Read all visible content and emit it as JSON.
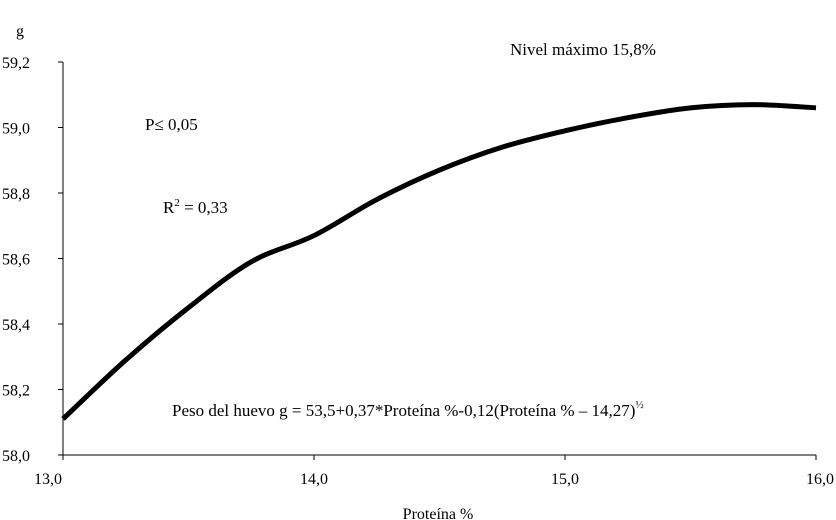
{
  "chart_data": {
    "type": "line",
    "ylabel": "g",
    "xlabel": "Proteína %",
    "xlim": [
      13.0,
      16.0
    ],
    "ylim": [
      58.0,
      59.2
    ],
    "x_ticks": [
      "13,0",
      "14,0",
      "15,0",
      "16,0"
    ],
    "y_ticks": [
      "58,0",
      "58,2",
      "58,4",
      "58,6",
      "58,8",
      "59,0",
      "59,2"
    ],
    "x_tick_values": [
      13.0,
      14.0,
      15.0,
      16.0
    ],
    "y_tick_values": [
      58.0,
      58.2,
      58.4,
      58.6,
      58.8,
      59.0,
      59.2
    ],
    "grid": false,
    "series": [
      {
        "x": [
          13.0,
          13.25,
          13.5,
          13.75,
          14.0,
          14.25,
          14.5,
          14.75,
          15.0,
          15.25,
          15.5,
          15.75,
          16.0
        ],
        "y": [
          58.11,
          58.29,
          58.45,
          58.59,
          58.67,
          58.78,
          58.87,
          58.94,
          58.99,
          59.03,
          59.06,
          59.07,
          59.06
        ]
      }
    ],
    "annotations": {
      "max_level": "Nivel máximo 15,8%",
      "p_value": "P≤ 0,05",
      "r2_prefix": "R",
      "r2_sup": "2",
      "r2_suffix": " = 0,33",
      "equation_main": "Peso del huevo g = 53,5+0,37*Proteína %-0,12(Proteína % – 14,27)",
      "equation_sup": "½"
    }
  }
}
